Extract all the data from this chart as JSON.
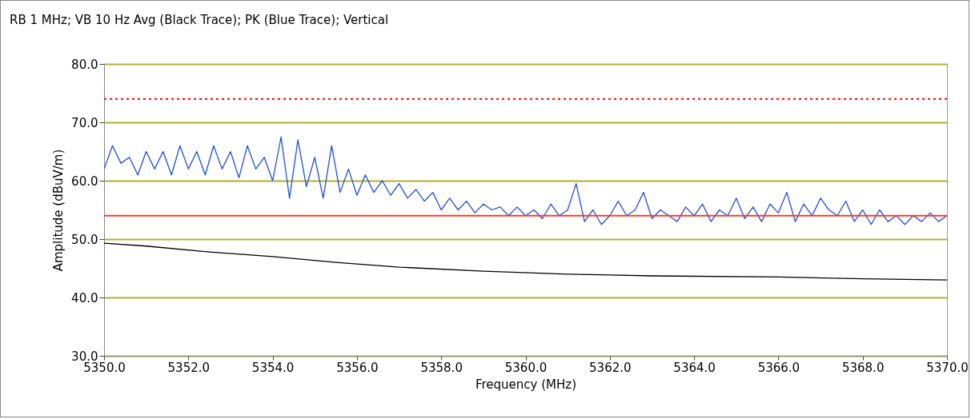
{
  "chart_data": {
    "type": "line",
    "title": "RB 1 MHz; VB 10 Hz Avg (Black Trace); PK (Blue Trace); Vertical",
    "xlabel": "Frequency (MHz)",
    "ylabel": "Amplitude (dBuV/m)",
    "xlim": [
      5350,
      5370
    ],
    "xticks": [
      {
        "value": 5350,
        "label": "5350.0"
      },
      {
        "value": 5352,
        "label": "5352.0"
      },
      {
        "value": 5354,
        "label": "5354.0"
      },
      {
        "value": 5356,
        "label": "5356.0"
      },
      {
        "value": 5358,
        "label": "5358.0"
      },
      {
        "value": 5360,
        "label": "5360.0"
      },
      {
        "value": 5362,
        "label": "5362.0"
      },
      {
        "value": 5364,
        "label": "5364.0"
      },
      {
        "value": 5366,
        "label": "5366.0"
      },
      {
        "value": 5368,
        "label": "5368.0"
      },
      {
        "value": 5370,
        "label": "5370.0"
      }
    ],
    "ylim": [
      30,
      80
    ],
    "yticks": [
      {
        "value": 30,
        "label": "30.0"
      },
      {
        "value": 40,
        "label": "40.0"
      },
      {
        "value": 50,
        "label": "50.0"
      },
      {
        "value": 60,
        "label": "60.0"
      },
      {
        "value": 70,
        "label": "70.0"
      },
      {
        "value": 80,
        "label": "80.0"
      }
    ],
    "grid": "y",
    "marker": "none",
    "line_style": "solid",
    "x": [
      5350.0,
      5350.2,
      5350.4,
      5350.6,
      5350.8,
      5351.0,
      5351.2,
      5351.4,
      5351.6,
      5351.8,
      5352.0,
      5352.2,
      5352.4,
      5352.6,
      5352.8,
      5353.0,
      5353.2,
      5353.4,
      5353.6,
      5353.8,
      5354.0,
      5354.2,
      5354.4,
      5354.6,
      5354.8,
      5355.0,
      5355.2,
      5355.4,
      5355.6,
      5355.8,
      5356.0,
      5356.2,
      5356.4,
      5356.6,
      5356.8,
      5357.0,
      5357.2,
      5357.4,
      5357.6,
      5357.8,
      5358.0,
      5358.2,
      5358.4,
      5358.6,
      5358.8,
      5359.0,
      5359.2,
      5359.4,
      5359.6,
      5359.8,
      5360.0,
      5360.2,
      5360.4,
      5360.6,
      5360.8,
      5361.0,
      5361.2,
      5361.4,
      5361.6,
      5361.8,
      5362.0,
      5362.2,
      5362.4,
      5362.6,
      5362.8,
      5363.0,
      5363.2,
      5363.4,
      5363.6,
      5363.8,
      5364.0,
      5364.2,
      5364.4,
      5364.6,
      5364.8,
      5365.0,
      5365.2,
      5365.4,
      5365.6,
      5365.8,
      5366.0,
      5366.2,
      5366.4,
      5366.6,
      5366.8,
      5367.0,
      5367.2,
      5367.4,
      5367.6,
      5367.8,
      5368.0,
      5368.2,
      5368.4,
      5368.6,
      5368.8,
      5369.0,
      5369.2,
      5369.4,
      5369.6,
      5369.8,
      5370.0
    ],
    "series": [
      {
        "color": "#1f4fd8",
        "values": [
          62,
          66,
          63,
          64,
          61,
          65,
          62,
          65,
          61,
          66,
          62,
          65,
          61,
          66,
          62,
          65,
          60.5,
          66,
          62,
          64,
          60,
          67.5,
          57,
          67,
          59,
          64,
          57,
          66,
          58,
          62,
          57.5,
          61,
          58,
          60,
          57.5,
          59.5,
          57,
          58.5,
          56.5,
          58,
          55,
          57,
          55,
          56.5,
          54.5,
          56,
          55,
          55.5,
          54,
          55.5,
          54,
          55,
          53.5,
          56,
          54,
          55,
          59.5,
          53,
          55,
          52.5,
          54,
          56.5,
          54,
          55,
          58,
          53.5,
          55,
          54,
          53,
          55.5,
          54,
          56,
          53,
          55,
          54,
          57,
          53.5,
          55.5,
          53,
          56,
          54.5,
          58,
          53,
          56,
          54,
          57,
          55,
          54,
          56.5,
          53,
          55,
          52.5,
          55,
          53,
          54,
          52.5,
          54,
          53,
          54.5,
          53,
          54
        ]
      },
      {
        "color": "#000000",
        "x": [
          5350,
          5351,
          5352.5,
          5354,
          5355.5,
          5357,
          5359,
          5361,
          5363,
          5366,
          5368,
          5370
        ],
        "values": [
          49.3,
          48.8,
          47.8,
          47,
          46,
          45.2,
          44.5,
          44,
          43.7,
          43.5,
          43.2,
          43
        ]
      }
    ],
    "ref_lines": [
      {
        "axis": "y",
        "value": 74,
        "color": "#ff0000",
        "line_style": "dotted"
      },
      {
        "axis": "y",
        "value": 54,
        "color": "#ff3b1f",
        "line_style": "solid"
      }
    ]
  }
}
